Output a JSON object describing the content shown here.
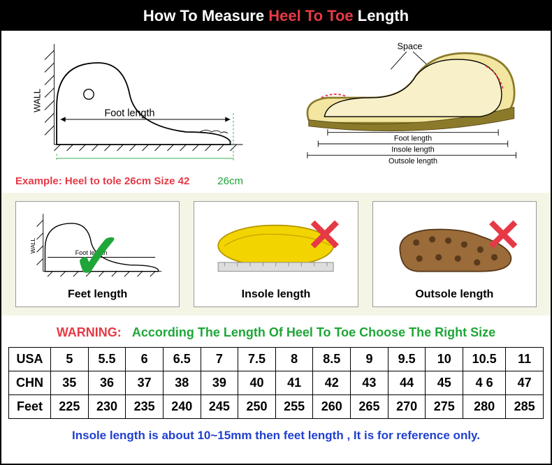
{
  "header": {
    "pre": "How To Measure ",
    "accent": "Heel To Toe",
    "post": " Length"
  },
  "diagram_left": {
    "wall_label": "WALL",
    "foot_length_label": "Foot length",
    "example_prefix": "Example: ",
    "example_text": "Heel to tole 26cm Size 42",
    "example_cm": "26cm"
  },
  "diagram_right": {
    "space_label": "Space",
    "foot_length": "Foot length",
    "insole_length": "Insole length",
    "outsole_length": "Outsole length"
  },
  "methods": [
    {
      "label": "Feet length",
      "mark": "check",
      "wall_label": "WALL",
      "foot_label": "Foot length"
    },
    {
      "label": "Insole length",
      "mark": "cross"
    },
    {
      "label": "Outsole length",
      "mark": "cross"
    }
  ],
  "warning": {
    "label": "WARNING:",
    "text": "According The Length Of Heel To Toe Choose The Right Size"
  },
  "size_table": {
    "rows": [
      {
        "head": "USA",
        "cells": [
          "5",
          "5.5",
          "6",
          "6.5",
          "7",
          "7.5",
          "8",
          "8.5",
          "9",
          "9.5",
          "10",
          "10.5",
          "11"
        ]
      },
      {
        "head": "CHN",
        "cells": [
          "35",
          "36",
          "37",
          "38",
          "39",
          "40",
          "41",
          "42",
          "43",
          "44",
          "45",
          "4 6",
          "47"
        ]
      },
      {
        "head": "Feet",
        "cells": [
          "225",
          "230",
          "235",
          "240",
          "245",
          "250",
          "255",
          "260",
          "265",
          "270",
          "275",
          "280",
          "285"
        ]
      }
    ]
  },
  "footnote": "Insole length is about 10~15mm then feet length , It is for reference only.",
  "colors": {
    "accent_red": "#e63946",
    "accent_green": "#1fa638",
    "footnote_blue": "#2040d0",
    "panel_bg": "#f5f5e6",
    "shoe_fill": "#f2e6a0",
    "insole_fill": "#f2d400",
    "outsole_fill": "#9b6b3a"
  }
}
